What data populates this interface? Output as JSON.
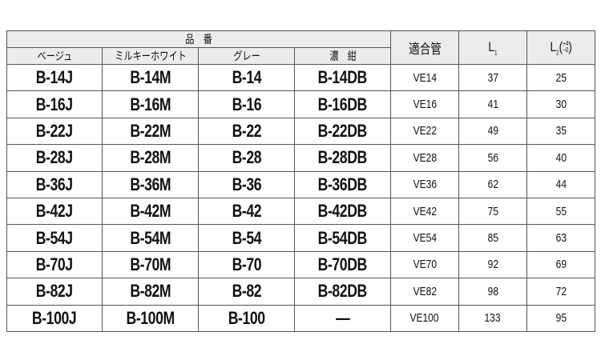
{
  "header": {
    "product_number": "品　番",
    "colors": [
      "ベージュ",
      "ミルキーホワイト",
      "グレー",
      "濃　紺"
    ],
    "pipe": "適合管",
    "l1": "L",
    "l1_sub": "1",
    "l2": "L",
    "l2_sub": "2",
    "l2_tol_plus": "+4",
    "l2_tol_minus": "−0"
  },
  "rows": [
    [
      "B-14J",
      "B-14M",
      "B-14",
      "B-14DB",
      "VE14",
      "37",
      "25"
    ],
    [
      "B-16J",
      "B-16M",
      "B-16",
      "B-16DB",
      "VE16",
      "41",
      "30"
    ],
    [
      "B-22J",
      "B-22M",
      "B-22",
      "B-22DB",
      "VE22",
      "49",
      "35"
    ],
    [
      "B-28J",
      "B-28M",
      "B-28",
      "B-28DB",
      "VE28",
      "56",
      "40"
    ],
    [
      "B-36J",
      "B-36M",
      "B-36",
      "B-36DB",
      "VE36",
      "62",
      "44"
    ],
    [
      "B-42J",
      "B-42M",
      "B-42",
      "B-42DB",
      "VE42",
      "75",
      "55"
    ],
    [
      "B-54J",
      "B-54M",
      "B-54",
      "B-54DB",
      "VE54",
      "85",
      "63"
    ],
    [
      "B-70J",
      "B-70M",
      "B-70",
      "B-70DB",
      "VE70",
      "92",
      "69"
    ],
    [
      "B-82J",
      "B-82M",
      "B-82",
      "B-82DB",
      "VE82",
      "98",
      "72"
    ],
    [
      "B-100J",
      "B-100M",
      "B-100",
      "—",
      "VE100",
      "133",
      "95"
    ]
  ]
}
